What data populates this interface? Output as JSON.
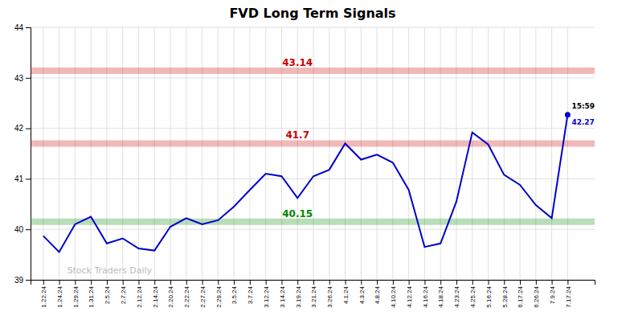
{
  "chart_data": {
    "type": "line",
    "title": "FVD Long Term Signals",
    "categories": [
      "1.22.24",
      "1.24.24",
      "1.29.24",
      "1.31.24",
      "2.5.24",
      "2.7.24",
      "2.12.24",
      "2.14.24",
      "2.20.24",
      "2.22.24",
      "2.27.24",
      "2.29.24",
      "3.5.24",
      "3.7.24",
      "3.12.24",
      "3.14.24",
      "3.19.24",
      "3.21.24",
      "3.26.24",
      "4.1.24",
      "4.3.24",
      "4.8.24",
      "4.10.24",
      "4.12.24",
      "4.16.24",
      "4.18.24",
      "4.23.24",
      "4.25.24",
      "5.16.24",
      "5.28.24",
      "6.17.24",
      "6.26.24",
      "7.9.24",
      "7.17.24"
    ],
    "values": [
      39.87,
      39.55,
      40.1,
      40.25,
      39.72,
      39.82,
      39.62,
      39.58,
      40.05,
      40.22,
      40.1,
      40.18,
      40.45,
      40.78,
      41.1,
      41.05,
      40.62,
      41.05,
      41.18,
      41.7,
      41.38,
      41.48,
      41.32,
      40.78,
      39.65,
      39.72,
      40.55,
      41.92,
      41.68,
      41.08,
      40.88,
      40.48,
      40.22,
      42.27
    ],
    "color": "#0000cc",
    "hlines": [
      {
        "value": 43.14,
        "color": "#cc0000"
      },
      {
        "value": 41.7,
        "color": "#cc0000"
      },
      {
        "value": 40.15,
        "color": "#008800"
      }
    ],
    "annotations": [
      {
        "text": "15:59"
      },
      {
        "text": "Stock Traders Daily"
      }
    ],
    "ylim": [
      39,
      44
    ],
    "yticks": [
      39,
      40,
      41,
      42,
      43,
      44
    ],
    "grid": true
  }
}
